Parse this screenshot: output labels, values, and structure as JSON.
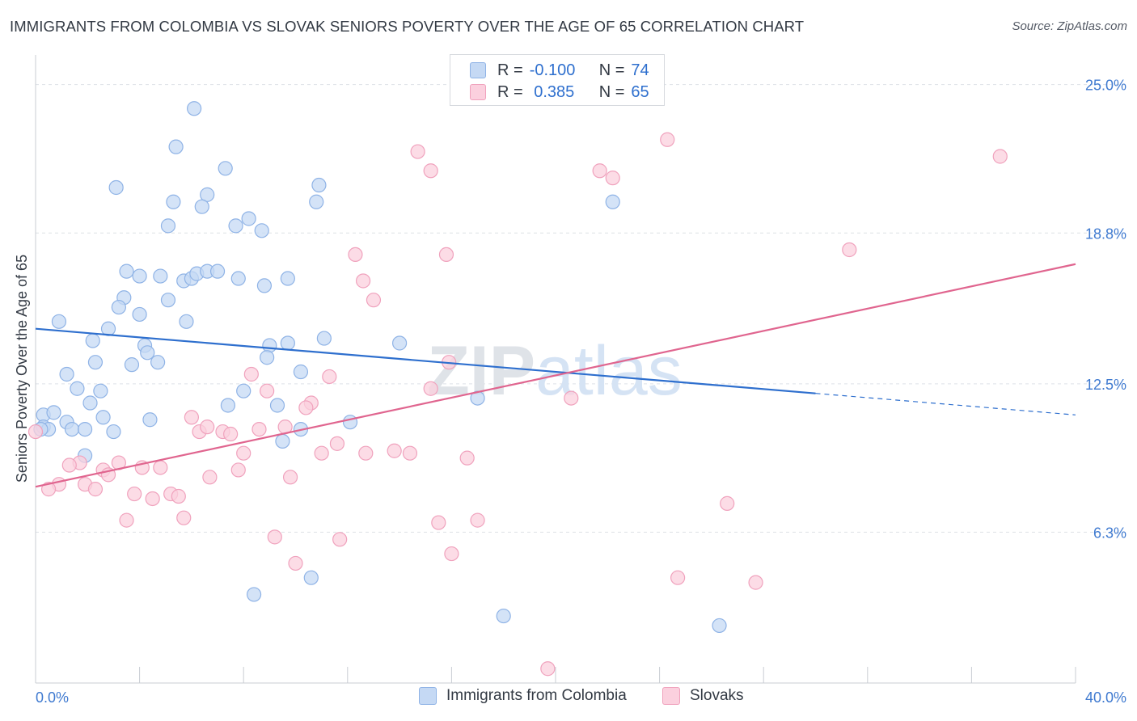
{
  "header": {
    "title": "IMMIGRANTS FROM COLOMBIA VS SLOVAK SENIORS POVERTY OVER THE AGE OF 65 CORRELATION CHART",
    "source": "Source: ZipAtlas.com"
  },
  "legend_top": {
    "rows": [
      {
        "r_label": "R =",
        "r_value": "-0.100",
        "n_label": "N =",
        "n_value": "74"
      },
      {
        "r_label": "R =",
        "r_value": " 0.385",
        "n_label": "N =",
        "n_value": "65"
      }
    ]
  },
  "legend_bottom": {
    "items": [
      "Immigrants from Colombia",
      "Slovaks"
    ]
  },
  "watermark": "ZIPatlas",
  "colors": {
    "blue": "#2e6fce",
    "blue_fill": "#c5d9f4",
    "blue_stroke": "#8fb3e6",
    "pink": "#e0658f",
    "pink_fill": "#fbd0de",
    "pink_stroke": "#f0a2bd",
    "tick_text": "#3f7ad0",
    "grid": "#dde1e6"
  },
  "chart_data": {
    "type": "scatter",
    "title": "IMMIGRANTS FROM COLOMBIA VS SLOVAK SENIORS POVERTY OVER THE AGE OF 65 CORRELATION CHART",
    "xlabel": "",
    "ylabel": "Seniors Poverty Over the Age of 65",
    "xlim": [
      0,
      40
    ],
    "ylim": [
      0,
      25.9
    ],
    "x_tick_labels": [
      "0.0%",
      "40.0%"
    ],
    "y_ticks": [
      6.3,
      12.5,
      18.8,
      25.0
    ],
    "y_tick_labels": [
      "6.3%",
      "12.5%",
      "18.8%",
      "25.0%"
    ],
    "grid": "horizontal dashed",
    "legend_placement": "bottom-center",
    "series": [
      {
        "name": "Immigrants from Colombia",
        "color": "#2e6fce",
        "trend": {
          "x0": 0,
          "y0": 14.8,
          "x1": 30,
          "y1": 12.1,
          "dashed_to_x": 40,
          "dashed_to_y": 11.2
        },
        "points": [
          [
            6.1,
            24.0
          ],
          [
            5.4,
            22.4
          ],
          [
            7.3,
            21.5
          ],
          [
            3.1,
            20.7
          ],
          [
            6.6,
            20.4
          ],
          [
            10.9,
            20.8
          ],
          [
            5.3,
            20.1
          ],
          [
            6.4,
            19.9
          ],
          [
            10.8,
            20.1
          ],
          [
            22.2,
            20.1
          ],
          [
            5.1,
            19.1
          ],
          [
            7.7,
            19.1
          ],
          [
            8.2,
            19.4
          ],
          [
            8.7,
            18.9
          ],
          [
            3.5,
            17.2
          ],
          [
            4.0,
            17.0
          ],
          [
            4.8,
            17.0
          ],
          [
            5.7,
            16.8
          ],
          [
            6.0,
            16.9
          ],
          [
            6.2,
            17.1
          ],
          [
            6.6,
            17.2
          ],
          [
            7.0,
            17.2
          ],
          [
            7.8,
            16.9
          ],
          [
            8.8,
            16.6
          ],
          [
            9.7,
            16.9
          ],
          [
            3.4,
            16.1
          ],
          [
            3.2,
            15.7
          ],
          [
            5.1,
            16.0
          ],
          [
            4.0,
            15.4
          ],
          [
            0.9,
            15.1
          ],
          [
            2.8,
            14.8
          ],
          [
            5.8,
            15.1
          ],
          [
            2.2,
            14.3
          ],
          [
            4.2,
            14.1
          ],
          [
            4.3,
            13.8
          ],
          [
            9.0,
            14.1
          ],
          [
            9.7,
            14.2
          ],
          [
            11.1,
            14.4
          ],
          [
            14.0,
            14.2
          ],
          [
            2.3,
            13.4
          ],
          [
            3.7,
            13.3
          ],
          [
            4.7,
            13.4
          ],
          [
            8.9,
            13.6
          ],
          [
            1.2,
            12.9
          ],
          [
            10.2,
            13.0
          ],
          [
            1.6,
            12.3
          ],
          [
            2.5,
            12.2
          ],
          [
            8.0,
            12.2
          ],
          [
            17.0,
            11.9
          ],
          [
            2.1,
            11.7
          ],
          [
            7.4,
            11.6
          ],
          [
            9.3,
            11.6
          ],
          [
            0.3,
            11.2
          ],
          [
            0.7,
            11.3
          ],
          [
            2.6,
            11.1
          ],
          [
            4.4,
            11.0
          ],
          [
            12.1,
            10.9
          ],
          [
            1.2,
            10.9
          ],
          [
            0.3,
            10.7
          ],
          [
            0.5,
            10.6
          ],
          [
            0.2,
            10.6
          ],
          [
            1.4,
            10.6
          ],
          [
            1.9,
            10.6
          ],
          [
            3.0,
            10.5
          ],
          [
            10.2,
            10.6
          ],
          [
            9.5,
            10.1
          ],
          [
            1.9,
            9.5
          ],
          [
            10.6,
            4.4
          ],
          [
            8.4,
            3.7
          ],
          [
            18.0,
            2.8
          ],
          [
            26.3,
            2.4
          ]
        ]
      },
      {
        "name": "Slovaks",
        "color": "#e0658f",
        "trend": {
          "x0": 0,
          "y0": 8.2,
          "x1": 40,
          "y1": 17.5
        },
        "points": [
          [
            14.7,
            22.2
          ],
          [
            24.3,
            22.7
          ],
          [
            37.1,
            22.0
          ],
          [
            15.2,
            21.4
          ],
          [
            21.7,
            21.4
          ],
          [
            22.2,
            21.1
          ],
          [
            12.3,
            17.9
          ],
          [
            15.8,
            17.9
          ],
          [
            31.3,
            18.1
          ],
          [
            12.6,
            16.8
          ],
          [
            13.0,
            16.0
          ],
          [
            15.9,
            13.4
          ],
          [
            8.3,
            12.9
          ],
          [
            11.3,
            12.8
          ],
          [
            15.2,
            12.3
          ],
          [
            8.9,
            12.2
          ],
          [
            20.6,
            11.9
          ],
          [
            10.6,
            11.7
          ],
          [
            10.4,
            11.5
          ],
          [
            6.0,
            11.1
          ],
          [
            9.6,
            10.7
          ],
          [
            6.3,
            10.5
          ],
          [
            6.6,
            10.7
          ],
          [
            8.6,
            10.6
          ],
          [
            7.2,
            10.5
          ],
          [
            7.5,
            10.4
          ],
          [
            11.6,
            10.0
          ],
          [
            8.0,
            9.6
          ],
          [
            11.0,
            9.6
          ],
          [
            12.7,
            9.6
          ],
          [
            13.8,
            9.7
          ],
          [
            14.4,
            9.6
          ],
          [
            16.6,
            9.4
          ],
          [
            1.7,
            9.2
          ],
          [
            1.3,
            9.1
          ],
          [
            3.2,
            9.2
          ],
          [
            4.1,
            9.0
          ],
          [
            4.8,
            9.0
          ],
          [
            2.6,
            8.9
          ],
          [
            2.8,
            8.7
          ],
          [
            7.8,
            8.9
          ],
          [
            6.7,
            8.6
          ],
          [
            9.8,
            8.6
          ],
          [
            0.9,
            8.3
          ],
          [
            0.5,
            8.1
          ],
          [
            1.9,
            8.3
          ],
          [
            2.3,
            8.1
          ],
          [
            3.8,
            7.9
          ],
          [
            5.2,
            7.9
          ],
          [
            5.5,
            7.8
          ],
          [
            4.5,
            7.7
          ],
          [
            26.6,
            7.5
          ],
          [
            3.5,
            6.8
          ],
          [
            5.7,
            6.9
          ],
          [
            15.5,
            6.7
          ],
          [
            17.0,
            6.8
          ],
          [
            9.2,
            6.1
          ],
          [
            11.7,
            6.0
          ],
          [
            16.0,
            5.4
          ],
          [
            10.0,
            5.0
          ],
          [
            24.7,
            4.4
          ],
          [
            27.7,
            4.2
          ],
          [
            19.7,
            0.6
          ],
          [
            0.0,
            10.5
          ]
        ]
      }
    ]
  }
}
